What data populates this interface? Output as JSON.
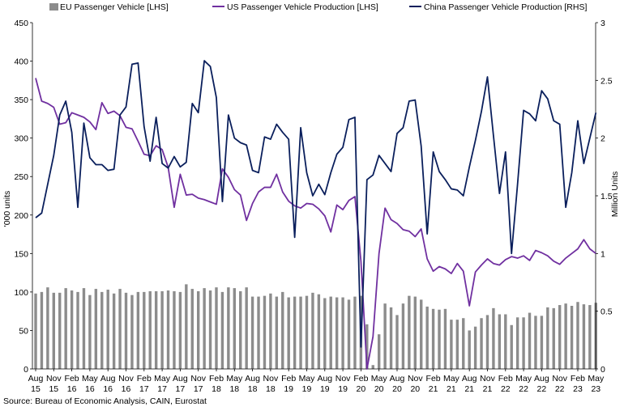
{
  "chart_data": {
    "type": "bar+line",
    "xlabel": "",
    "ylabel_left": "'000 units",
    "ylabel_right": "Million Units",
    "ylim_left": [
      0,
      450
    ],
    "ylim_right": [
      0,
      3
    ],
    "yticks_left": [
      "0",
      "50",
      "100",
      "150",
      "200",
      "250",
      "300",
      "350",
      "400",
      "450"
    ],
    "yticks_right": [
      "0",
      "0.5",
      "1",
      "1.5",
      "2",
      "2.5",
      "3"
    ],
    "x_tick_labels": [
      {
        "idx": 0,
        "m": "Aug",
        "y": "15"
      },
      {
        "idx": 3,
        "m": "Nov",
        "y": "15"
      },
      {
        "idx": 6,
        "m": "Feb",
        "y": "16"
      },
      {
        "idx": 9,
        "m": "May",
        "y": "16"
      },
      {
        "idx": 12,
        "m": "Aug",
        "y": "16"
      },
      {
        "idx": 15,
        "m": "Nov",
        "y": "16"
      },
      {
        "idx": 18,
        "m": "Feb",
        "y": "17"
      },
      {
        "idx": 21,
        "m": "May",
        "y": "17"
      },
      {
        "idx": 24,
        "m": "Aug",
        "y": "17"
      },
      {
        "idx": 27,
        "m": "Nov",
        "y": "17"
      },
      {
        "idx": 30,
        "m": "Feb",
        "y": "18"
      },
      {
        "idx": 33,
        "m": "May",
        "y": "18"
      },
      {
        "idx": 36,
        "m": "Aug",
        "y": "18"
      },
      {
        "idx": 39,
        "m": "Nov",
        "y": "18"
      },
      {
        "idx": 42,
        "m": "Feb",
        "y": "19"
      },
      {
        "idx": 45,
        "m": "May",
        "y": "19"
      },
      {
        "idx": 48,
        "m": "Aug",
        "y": "19"
      },
      {
        "idx": 51,
        "m": "Nov",
        "y": "19"
      },
      {
        "idx": 54,
        "m": "Feb",
        "y": "20"
      },
      {
        "idx": 57,
        "m": "May",
        "y": "20"
      },
      {
        "idx": 60,
        "m": "Aug",
        "y": "20"
      },
      {
        "idx": 63,
        "m": "Nov",
        "y": "20"
      },
      {
        "idx": 66,
        "m": "Feb",
        "y": "21"
      },
      {
        "idx": 69,
        "m": "May",
        "y": "21"
      },
      {
        "idx": 72,
        "m": "Aug",
        "y": "21"
      },
      {
        "idx": 75,
        "m": "Nov",
        "y": "21"
      },
      {
        "idx": 78,
        "m": "Feb",
        "y": "22"
      },
      {
        "idx": 81,
        "m": "May",
        "y": "22"
      },
      {
        "idx": 84,
        "m": "Aug",
        "y": "22"
      },
      {
        "idx": 87,
        "m": "Nov",
        "y": "22"
      },
      {
        "idx": 90,
        "m": "Feb",
        "y": "23"
      },
      {
        "idx": 93,
        "m": "May",
        "y": "23"
      }
    ],
    "series": [
      {
        "name": "EU Passenger Vehicle [LHS]",
        "kind": "bar",
        "axis": "left",
        "color": "#8c8c8c",
        "values": [
          98,
          100,
          106,
          99,
          99,
          105,
          102,
          100,
          105,
          96,
          104,
          100,
          103,
          98,
          104,
          99,
          96,
          100,
          100,
          101,
          101,
          101,
          102,
          101,
          100,
          110,
          104,
          101,
          105,
          102,
          106,
          100,
          106,
          105,
          101,
          106,
          94,
          94,
          95,
          98,
          94,
          100,
          93,
          94,
          94,
          95,
          99,
          97,
          92,
          94,
          93,
          93,
          90,
          94,
          95,
          58,
          5,
          45,
          85,
          80,
          70,
          85,
          95,
          94,
          90,
          81,
          78,
          77,
          78,
          64,
          64,
          66,
          50,
          55,
          66,
          70,
          79,
          71,
          71,
          57,
          67,
          67,
          73,
          69,
          69,
          80,
          79,
          83,
          85,
          82,
          87,
          84,
          83,
          86
        ]
      },
      {
        "name": "US Passenger Vehicle Production [LHS]",
        "kind": "line",
        "axis": "left",
        "color": "#7030a0",
        "values": [
          378,
          348,
          345,
          340,
          318,
          320,
          333,
          330,
          327,
          321,
          311,
          346,
          332,
          335,
          329,
          314,
          312,
          296,
          279,
          277,
          290,
          285,
          262,
          210,
          253,
          226,
          227,
          222,
          220,
          217,
          214,
          260,
          249,
          233,
          226,
          193,
          215,
          230,
          236,
          236,
          253,
          230,
          218,
          212,
          209,
          215,
          214,
          208,
          199,
          178,
          213,
          207,
          219,
          224,
          140,
          0,
          42,
          150,
          209,
          194,
          189,
          181,
          179,
          172,
          182,
          143,
          127,
          133,
          130,
          124,
          137,
          127,
          82,
          126,
          135,
          143,
          137,
          135,
          142,
          146,
          144,
          147,
          141,
          154,
          151,
          147,
          140,
          136,
          144,
          150,
          156,
          168,
          156,
          150
        ]
      },
      {
        "name": "China Passenger Vehicle Production [RHS]",
        "kind": "line",
        "axis": "right",
        "color": "#0a1f5c",
        "values": [
          1.31,
          1.35,
          1.6,
          1.85,
          2.2,
          2.32,
          2.05,
          1.4,
          2.13,
          1.83,
          1.77,
          1.77,
          1.72,
          1.73,
          2.2,
          2.27,
          2.64,
          2.65,
          2.1,
          1.8,
          2.18,
          1.78,
          1.74,
          1.84,
          1.75,
          1.79,
          2.3,
          2.22,
          2.67,
          2.62,
          2.35,
          1.45,
          2.2,
          2.0,
          1.96,
          1.94,
          1.72,
          1.7,
          2.01,
          1.99,
          2.12,
          2.05,
          1.99,
          1.14,
          2.09,
          1.7,
          1.5,
          1.6,
          1.51,
          1.7,
          1.86,
          1.92,
          2.16,
          2.18,
          0.19,
          1.64,
          1.68,
          1.85,
          1.78,
          1.71,
          2.04,
          2.09,
          2.32,
          2.33,
          1.93,
          1.17,
          1.88,
          1.71,
          1.64,
          1.56,
          1.55,
          1.5,
          1.75,
          1.98,
          2.23,
          2.53,
          2.02,
          1.52,
          1.88,
          1.0,
          1.6,
          2.24,
          2.21,
          2.15,
          2.41,
          2.34,
          2.15,
          2.12,
          1.4,
          1.7,
          2.15,
          1.78,
          2.0,
          2.22
        ]
      }
    ],
    "legend_position": "top",
    "grid": false
  },
  "source_note": "Source: Bureau of Economic Analysis, CAIN, Eurostat"
}
